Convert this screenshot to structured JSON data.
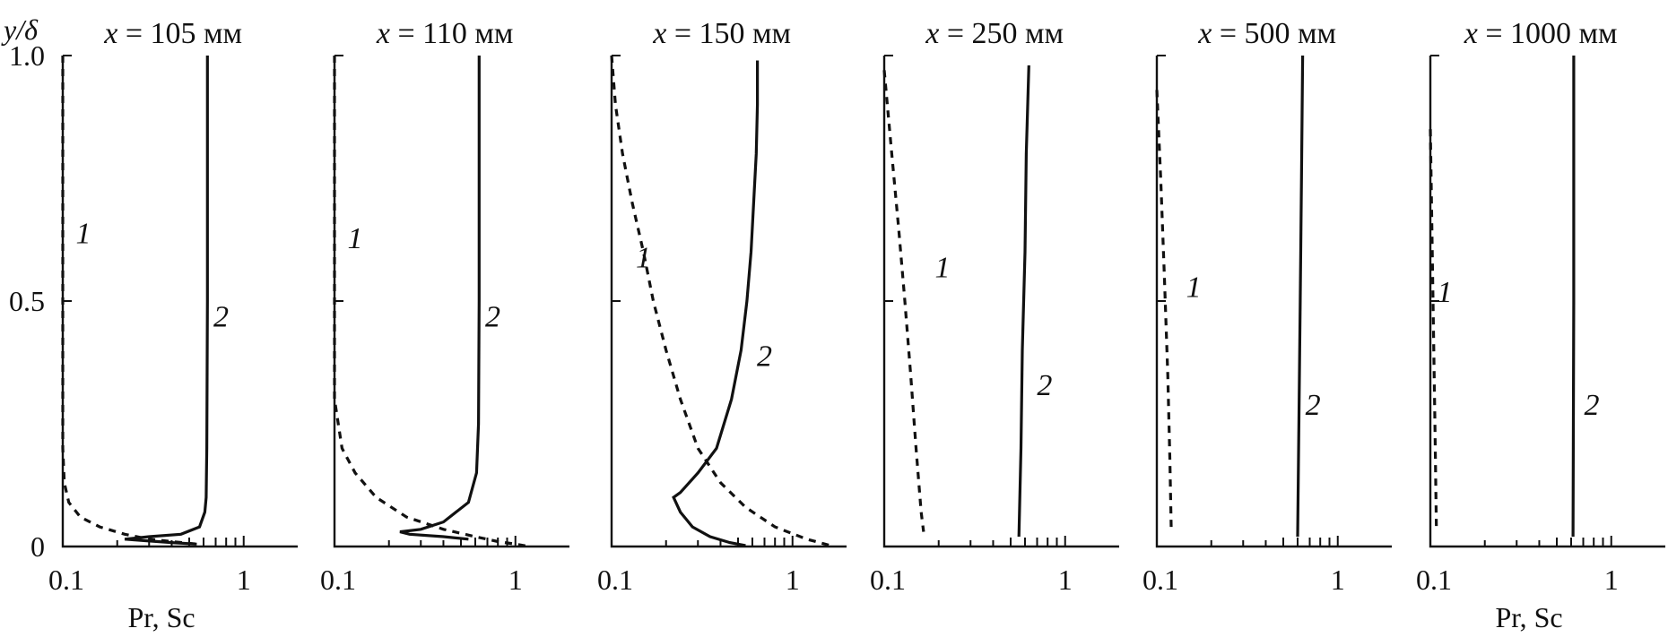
{
  "figure": {
    "ylabel": "y/δ",
    "xlabel": "Pr, Sc",
    "yticks": [
      "0",
      "0.5",
      "1.0"
    ],
    "xticks": [
      "0.1",
      "1"
    ],
    "xscale": "log",
    "xlim": [
      0.1,
      2.0
    ],
    "ylim": [
      0,
      1.0
    ]
  },
  "chart_data": [
    {
      "type": "line",
      "title_var": "x",
      "title_rest": " = 105 мм",
      "xlabel": "Pr, Sc",
      "ylabel": "y/δ",
      "xscale": "log",
      "xlim": [
        0.1,
        2.0
      ],
      "ylim": [
        0,
        1.0
      ],
      "series": [
        {
          "name": "1",
          "label_pos": {
            "x": 0.13,
            "y": 0.64
          },
          "points": [
            [
              0.1,
              1.0
            ],
            [
              0.1,
              0.5
            ],
            [
              0.1,
              0.2
            ],
            [
              0.102,
              0.13
            ],
            [
              0.108,
              0.09
            ],
            [
              0.125,
              0.06
            ],
            [
              0.16,
              0.04
            ],
            [
              0.22,
              0.025
            ],
            [
              0.3,
              0.015
            ],
            [
              0.4,
              0.01
            ],
            [
              0.55,
              0.005
            ]
          ]
        },
        {
          "name": "2",
          "label_pos": {
            "x": 0.75,
            "y": 0.47
          },
          "points": [
            [
              0.63,
              1.0
            ],
            [
              0.63,
              0.5
            ],
            [
              0.625,
              0.2
            ],
            [
              0.62,
              0.1
            ],
            [
              0.61,
              0.07
            ],
            [
              0.57,
              0.04
            ],
            [
              0.45,
              0.025
            ],
            [
              0.3,
              0.02
            ],
            [
              0.22,
              0.015
            ],
            [
              0.28,
              0.012
            ],
            [
              0.4,
              0.008
            ],
            [
              0.55,
              0.005
            ]
          ]
        }
      ]
    },
    {
      "type": "line",
      "title_var": "x",
      "title_rest": " = 110 мм",
      "xlabel": "",
      "ylabel": "",
      "xscale": "log",
      "xlim": [
        0.1,
        2.0
      ],
      "ylim": [
        0,
        1.0
      ],
      "series": [
        {
          "name": "1",
          "label_pos": {
            "x": 0.13,
            "y": 0.63
          },
          "points": [
            [
              0.1,
              1.0
            ],
            [
              0.1,
              0.5
            ],
            [
              0.1,
              0.3
            ],
            [
              0.11,
              0.2
            ],
            [
              0.13,
              0.15
            ],
            [
              0.17,
              0.1
            ],
            [
              0.25,
              0.06
            ],
            [
              0.4,
              0.035
            ],
            [
              0.6,
              0.02
            ],
            [
              0.8,
              0.01
            ],
            [
              1.0,
              0.005
            ],
            [
              1.2,
              0.0
            ]
          ]
        },
        {
          "name": "2",
          "label_pos": {
            "x": 0.75,
            "y": 0.47
          },
          "points": [
            [
              0.63,
              1.0
            ],
            [
              0.63,
              0.5
            ],
            [
              0.625,
              0.25
            ],
            [
              0.61,
              0.15
            ],
            [
              0.55,
              0.09
            ],
            [
              0.4,
              0.05
            ],
            [
              0.3,
              0.035
            ],
            [
              0.23,
              0.03
            ],
            [
              0.26,
              0.025
            ],
            [
              0.4,
              0.02
            ],
            [
              0.55,
              0.015
            ]
          ]
        }
      ]
    },
    {
      "type": "line",
      "title_var": "x",
      "title_rest": " = 150 мм",
      "xlabel": "",
      "ylabel": "",
      "xscale": "log",
      "xlim": [
        0.1,
        2.0
      ],
      "ylim": [
        0,
        1.0
      ],
      "series": [
        {
          "name": "1",
          "label_pos": {
            "x": 0.15,
            "y": 0.59
          },
          "points": [
            [
              0.1,
              1.0
            ],
            [
              0.105,
              0.9
            ],
            [
              0.115,
              0.8
            ],
            [
              0.13,
              0.7
            ],
            [
              0.15,
              0.6
            ],
            [
              0.17,
              0.5
            ],
            [
              0.2,
              0.4
            ],
            [
              0.24,
              0.3
            ],
            [
              0.3,
              0.2
            ],
            [
              0.4,
              0.13
            ],
            [
              0.55,
              0.08
            ],
            [
              0.8,
              0.04
            ],
            [
              1.2,
              0.015
            ],
            [
              1.7,
              0.0
            ]
          ]
        },
        {
          "name": "2",
          "label_pos": {
            "x": 0.7,
            "y": 0.39
          },
          "points": [
            [
              0.64,
              0.99
            ],
            [
              0.64,
              0.9
            ],
            [
              0.63,
              0.8
            ],
            [
              0.61,
              0.7
            ],
            [
              0.59,
              0.6
            ],
            [
              0.56,
              0.5
            ],
            [
              0.52,
              0.4
            ],
            [
              0.46,
              0.3
            ],
            [
              0.38,
              0.2
            ],
            [
              0.3,
              0.15
            ],
            [
              0.24,
              0.11
            ],
            [
              0.22,
              0.1
            ],
            [
              0.24,
              0.07
            ],
            [
              0.28,
              0.04
            ],
            [
              0.35,
              0.02
            ],
            [
              0.45,
              0.008
            ],
            [
              0.55,
              0.002
            ]
          ]
        }
      ]
    },
    {
      "type": "line",
      "title_var": "x",
      "title_rest": " = 250 мм",
      "xlabel": "",
      "ylabel": "",
      "xscale": "log",
      "xlim": [
        0.1,
        2.0
      ],
      "ylim": [
        0,
        1.0
      ],
      "series": [
        {
          "name": "1",
          "label_pos": {
            "x": 0.21,
            "y": 0.57
          },
          "points": [
            [
              0.1,
              0.97
            ],
            [
              0.11,
              0.8
            ],
            [
              0.12,
              0.65
            ],
            [
              0.13,
              0.5
            ],
            [
              0.14,
              0.35
            ],
            [
              0.15,
              0.2
            ],
            [
              0.16,
              0.07
            ],
            [
              0.165,
              0.03
            ]
          ]
        },
        {
          "name": "2",
          "label_pos": {
            "x": 0.77,
            "y": 0.33
          },
          "points": [
            [
              0.63,
              0.98
            ],
            [
              0.61,
              0.8
            ],
            [
              0.6,
              0.6
            ],
            [
              0.58,
              0.4
            ],
            [
              0.57,
              0.2
            ],
            [
              0.555,
              0.02
            ]
          ]
        }
      ]
    },
    {
      "type": "line",
      "title_var": "x",
      "title_rest": " = 500 мм",
      "xlabel": "",
      "ylabel": "",
      "xscale": "log",
      "xlim": [
        0.1,
        2.0
      ],
      "ylim": [
        0,
        1.0
      ],
      "series": [
        {
          "name": "1",
          "label_pos": {
            "x": 0.16,
            "y": 0.53
          },
          "points": [
            [
              0.1,
              0.93
            ],
            [
              0.105,
              0.75
            ],
            [
              0.11,
              0.55
            ],
            [
              0.115,
              0.35
            ],
            [
              0.118,
              0.18
            ],
            [
              0.12,
              0.04
            ]
          ]
        },
        {
          "name": "2",
          "label_pos": {
            "x": 0.73,
            "y": 0.29
          },
          "points": [
            [
              0.64,
              1.0
            ],
            [
              0.63,
              0.75
            ],
            [
              0.62,
              0.5
            ],
            [
              0.61,
              0.25
            ],
            [
              0.6,
              0.02
            ]
          ]
        }
      ]
    },
    {
      "type": "line",
      "title_var": "x",
      "title_rest": " = 1000 мм",
      "xlabel": "Pr, Sc",
      "ylabel": "",
      "xscale": "log",
      "xlim": [
        0.1,
        2.0
      ],
      "ylim": [
        0,
        1.0
      ],
      "series": [
        {
          "name": "1",
          "label_pos": {
            "x": 0.12,
            "y": 0.52
          },
          "points": [
            [
              0.1,
              0.85
            ],
            [
              0.102,
              0.65
            ],
            [
              0.104,
              0.45
            ],
            [
              0.106,
              0.25
            ],
            [
              0.108,
              0.04
            ]
          ]
        },
        {
          "name": "2",
          "label_pos": {
            "x": 0.78,
            "y": 0.29
          },
          "points": [
            [
              0.62,
              1.0
            ],
            [
              0.62,
              0.5
            ],
            [
              0.615,
              0.02
            ]
          ]
        }
      ]
    }
  ]
}
